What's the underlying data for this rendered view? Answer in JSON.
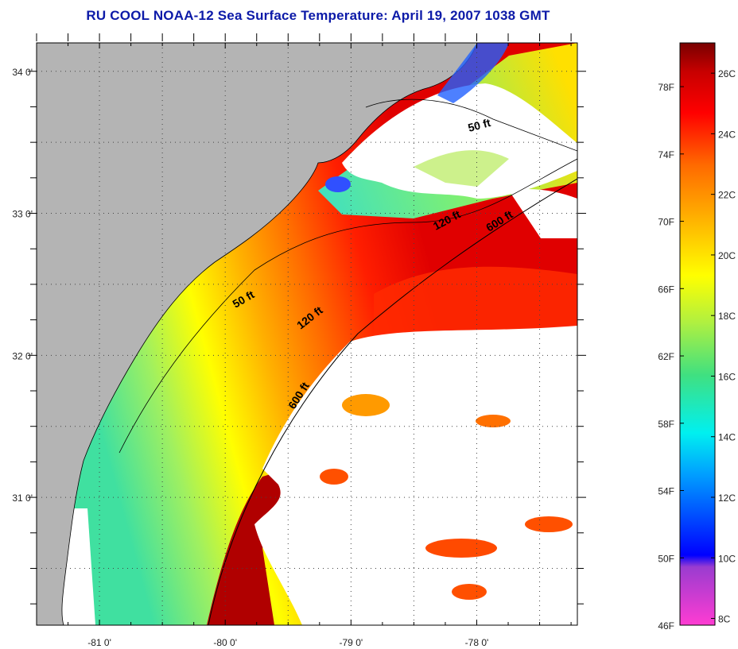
{
  "title": "RU COOL  NOAA-12  Sea Surface Temperature:  April 19, 2007 1038 GMT",
  "map": {
    "lon_range": [
      -81.5,
      -77.2
    ],
    "lat_range": [
      30.1,
      34.2
    ],
    "lon_ticks": [
      {
        "value": -81,
        "label": "-81 0'"
      },
      {
        "value": -80,
        "label": "-80 0'"
      },
      {
        "value": -79,
        "label": "-79 0'"
      },
      {
        "value": -78,
        "label": "-78 0'"
      }
    ],
    "lat_ticks": [
      {
        "value": 34,
        "label": "34 0'"
      },
      {
        "value": 33,
        "label": "33 0'"
      },
      {
        "value": 32,
        "label": "32 0'"
      },
      {
        "value": 31,
        "label": "31 0'"
      }
    ],
    "grid": "dotted",
    "land_color": "#b4b4b4",
    "cloud_color": "#ffffff",
    "isobath_labels": [
      {
        "text": "50 ft"
      },
      {
        "text": "120 ft"
      },
      {
        "text": "600 ft"
      },
      {
        "text": "50 ft"
      },
      {
        "text": "120 ft"
      },
      {
        "text": "600 ft"
      }
    ]
  },
  "colorbar": {
    "fahrenheit_labels": [
      "78F",
      "74F",
      "70F",
      "66F",
      "62F",
      "58F",
      "54F",
      "50F",
      "46F"
    ],
    "celsius_labels": [
      "26C",
      "24C",
      "22C",
      "20C",
      "18C",
      "16C",
      "14C",
      "12C",
      "10C",
      "8C"
    ],
    "colors": [
      "#ff3cd2",
      "#9a3cd0",
      "#0000ff",
      "#00a0ff",
      "#00f0f0",
      "#40e080",
      "#b0f040",
      "#ffff00",
      "#ffb000",
      "#ff6a00",
      "#ff0000",
      "#c80000",
      "#780000"
    ]
  }
}
